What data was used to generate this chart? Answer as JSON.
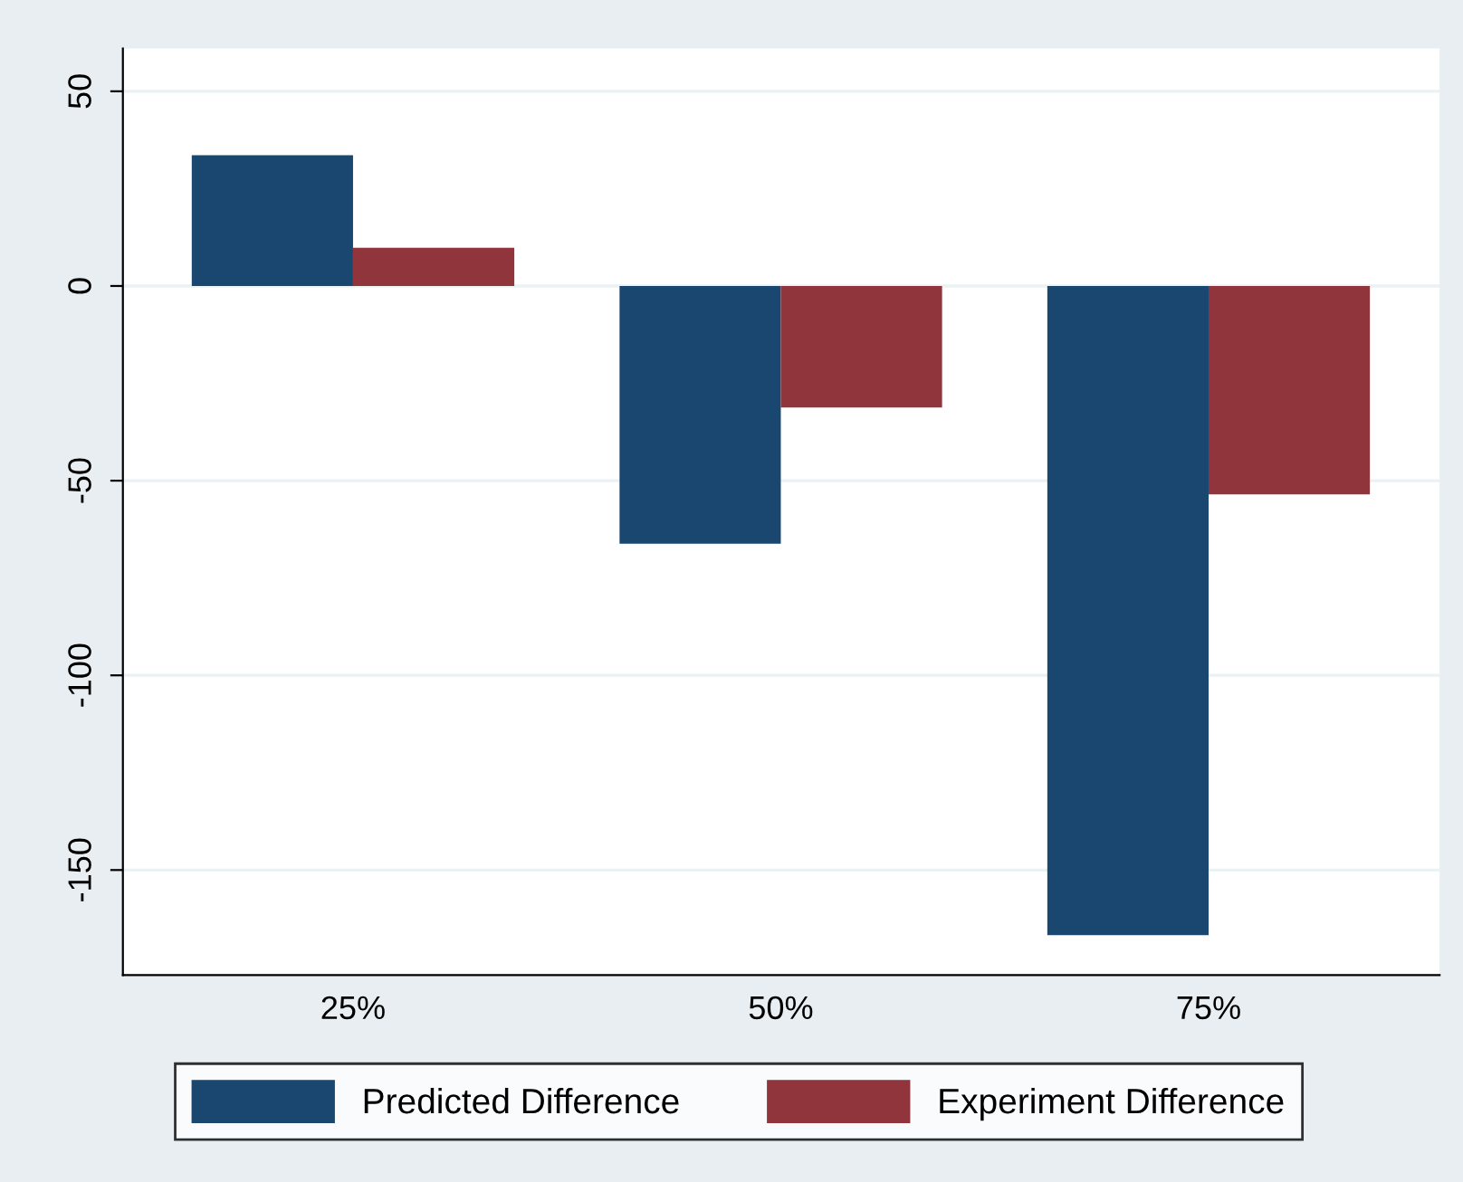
{
  "chart_data": {
    "type": "bar",
    "categories": [
      "25%",
      "50%",
      "75%"
    ],
    "series": [
      {
        "name": "Predicted Difference",
        "color": "#1a476f",
        "values": [
          33.6,
          -66.2,
          -166.7
        ]
      },
      {
        "name": "Experiment Difference",
        "color": "#90353b",
        "values": [
          9.8,
          -31.2,
          -53.5
        ]
      }
    ],
    "ylim": [
      -177,
      61
    ],
    "yticks": [
      -150,
      -100,
      -50,
      0,
      50
    ],
    "grid": "y",
    "legend": "bottom"
  }
}
